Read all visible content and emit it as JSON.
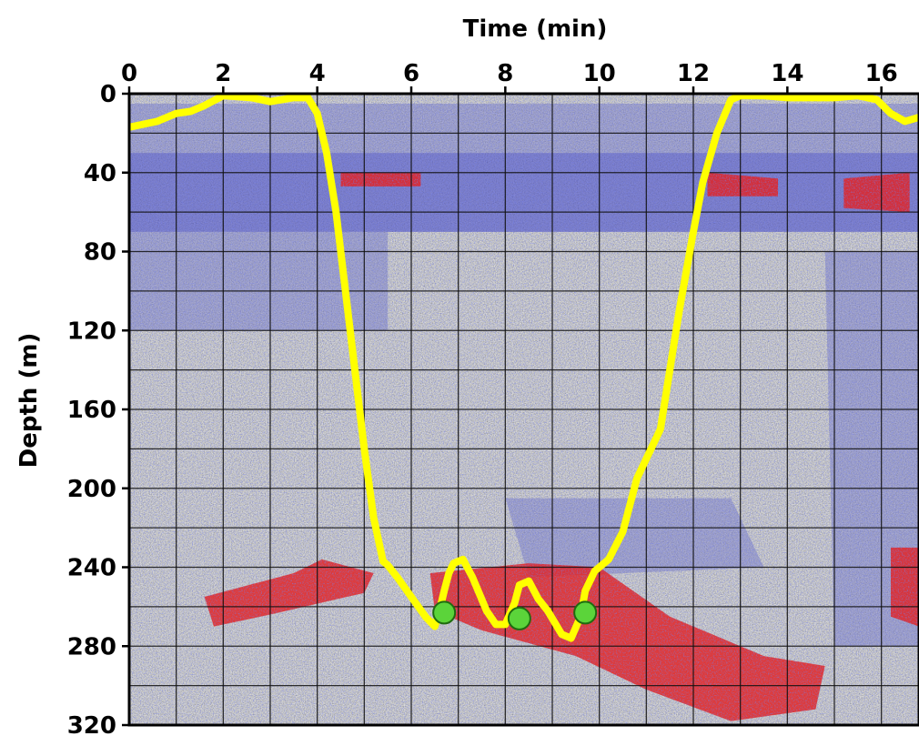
{
  "chart_data": {
    "type": "line",
    "xlabel": "Time (min)",
    "ylabel": "Depth (m)",
    "x_axis_position": "top",
    "y_inverted": true,
    "xlim": [
      0,
      16.8
    ],
    "ylim": [
      0,
      320
    ],
    "x_ticks": [
      0,
      2,
      4,
      6,
      8,
      10,
      12,
      14,
      16
    ],
    "y_ticks": [
      0,
      40,
      80,
      120,
      160,
      200,
      240,
      280,
      320
    ],
    "grid": true,
    "grid_minor_x": 1,
    "grid_minor_y": 20,
    "background": "echogram",
    "series": [
      {
        "color": "#ffff00",
        "x": [
          0,
          0.6,
          1.0,
          1.3,
          1.6,
          2.0,
          2.6,
          3.0,
          3.5,
          3.8,
          4.0,
          4.2,
          4.4,
          4.6,
          4.8,
          5.0,
          5.2,
          5.4,
          5.5,
          5.7,
          6.0,
          6.3,
          6.5,
          6.6,
          6.7,
          6.8,
          6.9,
          7.1,
          7.3,
          7.6,
          7.8,
          8.0,
          8.2,
          8.3,
          8.5,
          8.7,
          8.9,
          9.2,
          9.4,
          9.6,
          9.7,
          9.9,
          10.2,
          10.5,
          10.8,
          11.0,
          11.3,
          11.5,
          11.7,
          12.0,
          12.2,
          12.5,
          12.8,
          13.0,
          13.5,
          14.0,
          14.5,
          15.0,
          15.5,
          15.9,
          16.2,
          16.5,
          16.8
        ],
        "y": [
          17,
          14,
          10,
          9,
          6,
          1,
          2,
          4,
          2,
          2,
          10,
          30,
          60,
          100,
          140,
          180,
          215,
          237,
          239,
          245,
          255,
          265,
          270,
          262,
          252,
          243,
          238,
          236,
          245,
          262,
          269,
          269,
          258,
          249,
          247,
          256,
          262,
          274,
          276,
          265,
          252,
          242,
          236,
          222,
          195,
          185,
          170,
          140,
          110,
          70,
          45,
          20,
          3,
          1,
          1,
          2,
          2,
          2,
          1,
          3,
          10,
          14,
          12
        ]
      }
    ],
    "markers": {
      "color": "#5bd43a",
      "x": [
        6.7,
        8.3,
        9.7
      ],
      "y": [
        263,
        266,
        263
      ]
    }
  }
}
